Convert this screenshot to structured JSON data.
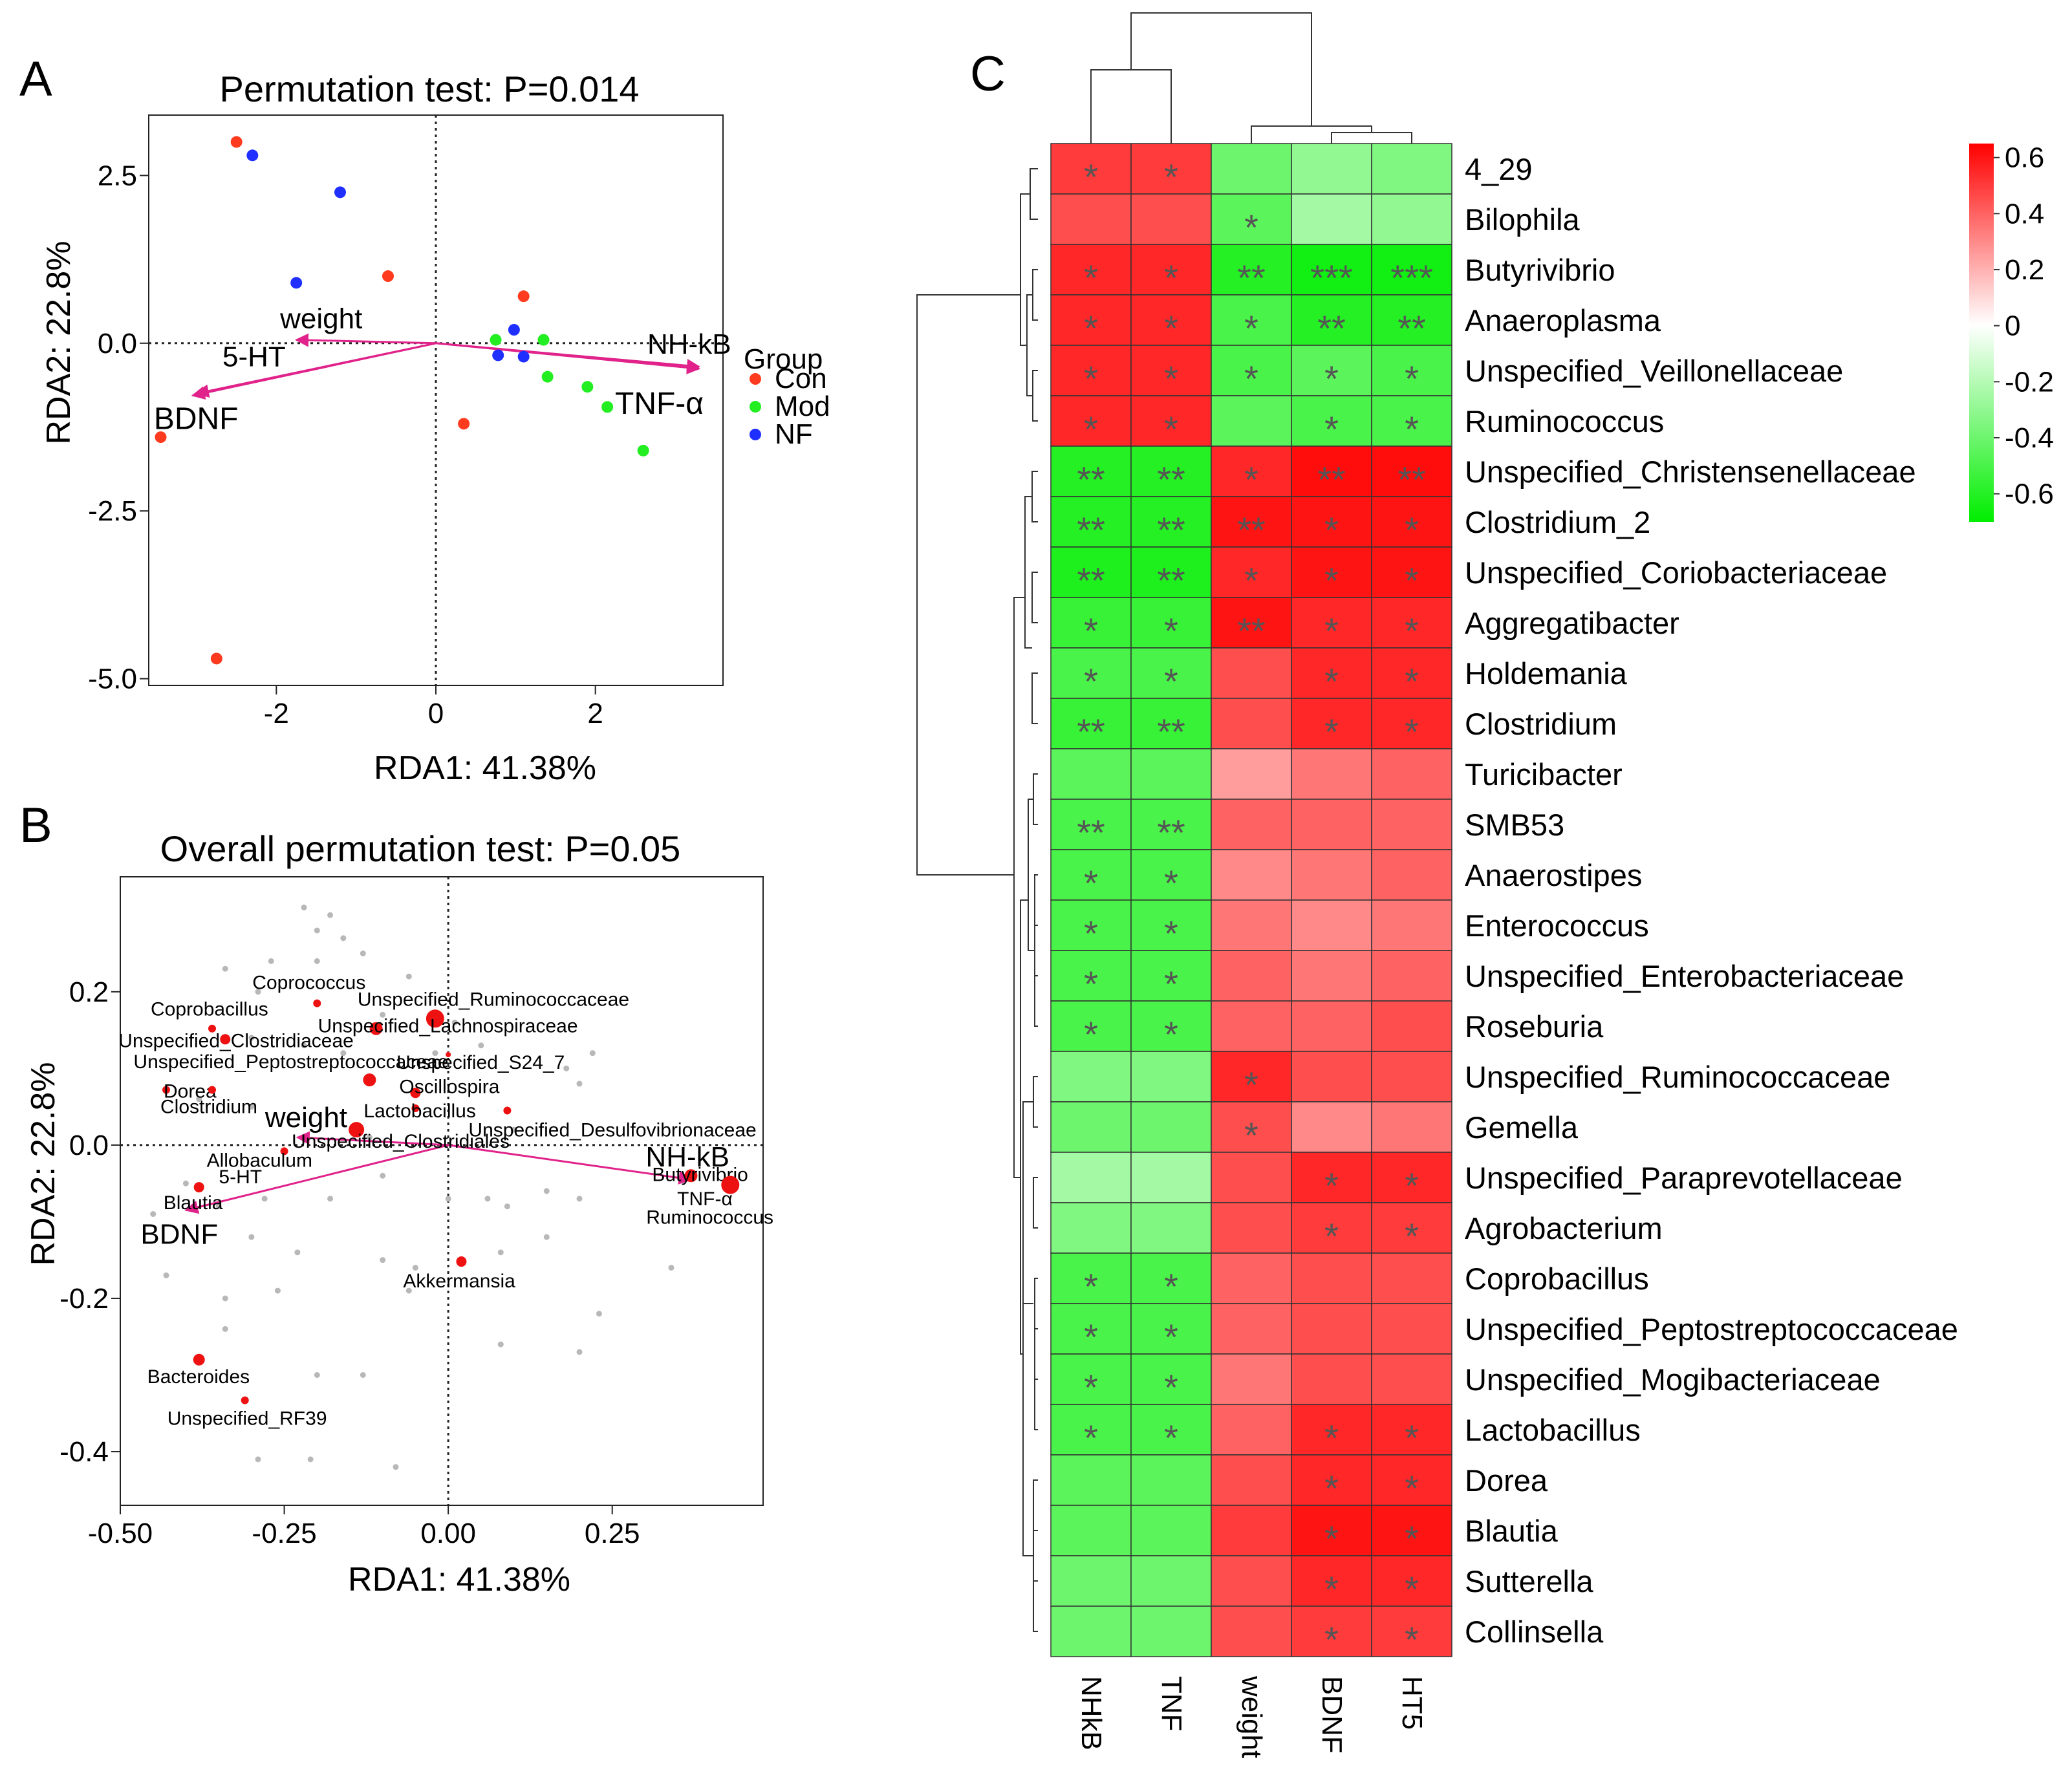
{
  "chart_data": [
    {
      "panel": "A",
      "type": "scatter",
      "title": "Permutation test: P=0.014",
      "xlabel": "RDA1: 41.38%",
      "ylabel": "RDA2: 22.8%",
      "xlim": [
        -3.6,
        3.6
      ],
      "ylim": [
        -5.1,
        3.4
      ],
      "xticks": [
        -2,
        0,
        2
      ],
      "xtick_labels": [
        "-2",
        "0",
        "2"
      ],
      "yticks": [
        -5.0,
        -2.5,
        0.0,
        2.5
      ],
      "ytick_labels": [
        "-5.0",
        "-2.5",
        "0.0",
        "2.5"
      ],
      "legend": {
        "title": "Group",
        "placement": "right"
      },
      "series": [
        {
          "name": "Con",
          "color": "#ff3b1f",
          "points": [
            [
              -2.5,
              3.0
            ],
            [
              -0.6,
              1.0
            ],
            [
              1.1,
              0.7
            ],
            [
              0.35,
              -1.2
            ],
            [
              -3.45,
              -1.4
            ],
            [
              -2.75,
              -4.7
            ]
          ]
        },
        {
          "name": "Mod",
          "color": "#22ee22",
          "points": [
            [
              0.75,
              0.05
            ],
            [
              1.35,
              0.05
            ],
            [
              1.4,
              -0.5
            ],
            [
              1.9,
              -0.65
            ],
            [
              2.15,
              -0.95
            ],
            [
              2.6,
              -1.6
            ]
          ]
        },
        {
          "name": "NF",
          "color": "#1f2fff",
          "points": [
            [
              -2.3,
              2.8
            ],
            [
              -1.2,
              2.25
            ],
            [
              -1.75,
              0.9
            ],
            [
              0.98,
              0.2
            ],
            [
              0.78,
              -0.18
            ],
            [
              1.1,
              -0.2
            ]
          ]
        }
      ],
      "arrows": [
        {
          "label": "weight",
          "end": [
            -1.75,
            0.05
          ]
        },
        {
          "label": "5-HT",
          "end": [
            -3.0,
            -0.75
          ]
        },
        {
          "label": "BDNF",
          "end": [
            -3.05,
            -0.78
          ]
        },
        {
          "label": "NH-kB",
          "end": [
            3.3,
            -0.35
          ]
        },
        {
          "label": "TNF-α",
          "end": [
            3.3,
            -0.38
          ]
        }
      ]
    },
    {
      "panel": "B",
      "type": "scatter",
      "title": "Overall permutation test: P=0.05",
      "xlabel": "RDA1: 41.38%",
      "ylabel": "RDA2: 22.8%",
      "xlim": [
        -0.5,
        0.48
      ],
      "ylim": [
        -0.47,
        0.35
      ],
      "xticks": [
        -0.5,
        -0.25,
        0.0,
        0.25
      ],
      "xtick_labels": [
        "-0.50",
        "-0.25",
        "0.00",
        "0.25"
      ],
      "yticks": [
        -0.4,
        -0.2,
        0.0,
        0.2
      ],
      "ytick_labels": [
        "-0.4",
        "-0.2",
        "0.0",
        "0.2"
      ],
      "taxa": [
        {
          "label": "Coprococcus",
          "x": -0.2,
          "y": 0.185,
          "size": 6
        },
        {
          "label": "Unspecified_Ruminococcaceae",
          "x": -0.02,
          "y": 0.165,
          "size": 14
        },
        {
          "label": "Coprobacillus",
          "x": -0.36,
          "y": 0.152,
          "size": 6
        },
        {
          "label": "Unspecified_Lachnospiraceae",
          "x": -0.11,
          "y": 0.152,
          "size": 10
        },
        {
          "label": "Unspecified_Clostridiaceae",
          "x": -0.34,
          "y": 0.138,
          "size": 8
        },
        {
          "label": "Unspecified_S24_7",
          "x": 0.0,
          "y": 0.118,
          "size": 4
        },
        {
          "label": "Unspecified_Peptostreptococcaceae",
          "x": -0.12,
          "y": 0.085,
          "size": 10
        },
        {
          "label": "Dorea",
          "x": -0.43,
          "y": 0.072,
          "size": 6
        },
        {
          "label": "Oscillospira",
          "x": -0.05,
          "y": 0.068,
          "size": 8
        },
        {
          "label": "Clostridium",
          "x": -0.36,
          "y": 0.072,
          "size": 6
        },
        {
          "label": "Lactobacillus",
          "x": -0.05,
          "y": 0.048,
          "size": 6
        },
        {
          "label": "Unspecified_Desulfovibrionaceae",
          "x": 0.09,
          "y": 0.045,
          "size": 6
        },
        {
          "label": "Unspecified_Clostridiales",
          "x": -0.14,
          "y": 0.02,
          "size": 12
        },
        {
          "label": "Allobaculum",
          "x": -0.25,
          "y": -0.008,
          "size": 6
        },
        {
          "label": "5-HT",
          "x": -0.33,
          "y": -0.05,
          "size": 4
        },
        {
          "label": "Blautia",
          "x": -0.38,
          "y": -0.055,
          "size": 8
        },
        {
          "label": "Butyrivibrio",
          "x": 0.37,
          "y": -0.04,
          "size": 10
        },
        {
          "label": "TNF-α",
          "x": 0.42,
          "y": -0.05,
          "size": 4
        },
        {
          "label": "Ruminococcus",
          "x": 0.43,
          "y": -0.052,
          "size": 14
        },
        {
          "label": "Akkermansia",
          "x": 0.02,
          "y": -0.152,
          "size": 8
        },
        {
          "label": "Bacteroides",
          "x": -0.38,
          "y": -0.28,
          "size": 9
        },
        {
          "label": "Unspecified_RF39",
          "x": -0.31,
          "y": -0.333,
          "size": 6
        }
      ],
      "background_points": [
        [
          -0.22,
          0.31
        ],
        [
          -0.18,
          0.3
        ],
        [
          -0.2,
          0.28
        ],
        [
          -0.16,
          0.27
        ],
        [
          -0.27,
          0.24
        ],
        [
          -0.2,
          0.24
        ],
        [
          -0.34,
          0.23
        ],
        [
          -0.13,
          0.25
        ],
        [
          -0.06,
          0.22
        ],
        [
          -0.29,
          0.2
        ],
        [
          -0.1,
          0.17
        ],
        [
          0.01,
          0.16
        ],
        [
          -0.3,
          0.14
        ],
        [
          -0.16,
          0.12
        ],
        [
          -0.22,
          0.13
        ],
        [
          -0.02,
          0.12
        ],
        [
          0.05,
          0.13
        ],
        [
          0.22,
          0.12
        ],
        [
          0.18,
          0.1
        ],
        [
          -0.38,
          0.06
        ],
        [
          -0.3,
          0.05
        ],
        [
          0.2,
          0.08
        ],
        [
          0.1,
          0.02
        ],
        [
          -0.12,
          0.01
        ],
        [
          -0.4,
          -0.05
        ],
        [
          -0.35,
          -0.08
        ],
        [
          -0.28,
          -0.07
        ],
        [
          -0.18,
          -0.07
        ],
        [
          -0.1,
          -0.04
        ],
        [
          0.0,
          -0.07
        ],
        [
          0.06,
          -0.07
        ],
        [
          0.09,
          -0.08
        ],
        [
          0.15,
          -0.06
        ],
        [
          0.2,
          -0.07
        ],
        [
          -0.45,
          -0.09
        ],
        [
          -0.3,
          -0.12
        ],
        [
          -0.23,
          -0.14
        ],
        [
          -0.1,
          -0.15
        ],
        [
          -0.05,
          -0.16
        ],
        [
          0.08,
          -0.14
        ],
        [
          0.15,
          -0.12
        ],
        [
          0.34,
          -0.16
        ],
        [
          -0.43,
          -0.17
        ],
        [
          -0.34,
          -0.2
        ],
        [
          -0.26,
          -0.19
        ],
        [
          -0.06,
          -0.19
        ],
        [
          0.23,
          -0.22
        ],
        [
          -0.34,
          -0.24
        ],
        [
          0.08,
          -0.26
        ],
        [
          0.2,
          -0.27
        ],
        [
          -0.2,
          -0.3
        ],
        [
          -0.13,
          -0.3
        ],
        [
          -0.29,
          -0.41
        ],
        [
          -0.21,
          -0.41
        ],
        [
          -0.08,
          -0.42
        ]
      ],
      "arrows": [
        {
          "label": "weight",
          "end": [
            -0.23,
            0.01
          ]
        },
        {
          "label": "BDNF",
          "end": [
            -0.4,
            -0.085
          ]
        },
        {
          "label": "NH-kB",
          "end": [
            0.37,
            -0.045
          ]
        }
      ]
    },
    {
      "panel": "C",
      "type": "heatmap",
      "columns": [
        "NHkB",
        "TNF",
        "weight",
        "BDNF",
        "HT5"
      ],
      "rows": [
        "4_29",
        "Bilophila",
        "Butyrivibrio",
        "Anaeroplasma",
        "Unspecified_Veillonellaceae",
        "Ruminococcus",
        "Unspecified_Christensenellaceae",
        "Clostridium_2",
        "Unspecified_Coriobacteriaceae",
        "Aggregatibacter",
        "Holdemania",
        "Clostridium",
        "Turicibacter",
        "SMB53",
        "Anaerostipes",
        "Enterococcus",
        "Unspecified_Enterobacteriaceae",
        "Roseburia",
        "Unspecified_Ruminococcaceae",
        "Gemella",
        "Unspecified_Paraprevotellaceae",
        "Agrobacterium",
        "Coprobacillus",
        "Unspecified_Peptostreptococcaceae",
        "Unspecified_Mogibacteriaceae",
        "Lactobacillus",
        "Dorea",
        "Blautia",
        "Sutterella",
        "Collinsella"
      ],
      "values": [
        [
          0.5,
          0.5,
          -0.4,
          -0.3,
          -0.35
        ],
        [
          0.45,
          0.45,
          -0.45,
          -0.25,
          -0.3
        ],
        [
          0.55,
          0.55,
          -0.6,
          -0.65,
          -0.65
        ],
        [
          0.55,
          0.55,
          -0.5,
          -0.6,
          -0.6
        ],
        [
          0.55,
          0.55,
          -0.5,
          -0.45,
          -0.5
        ],
        [
          0.55,
          0.55,
          -0.45,
          -0.5,
          -0.5
        ],
        [
          -0.6,
          -0.6,
          0.55,
          0.62,
          0.62
        ],
        [
          -0.6,
          -0.6,
          0.6,
          0.6,
          0.6
        ],
        [
          -0.62,
          -0.62,
          0.55,
          0.6,
          0.6
        ],
        [
          -0.55,
          -0.55,
          0.6,
          0.55,
          0.55
        ],
        [
          -0.5,
          -0.5,
          0.45,
          0.55,
          0.55
        ],
        [
          -0.55,
          -0.55,
          0.45,
          0.55,
          0.55
        ],
        [
          -0.45,
          -0.45,
          0.25,
          0.35,
          0.4
        ],
        [
          -0.5,
          -0.5,
          0.4,
          0.4,
          0.4
        ],
        [
          -0.5,
          -0.5,
          0.3,
          0.35,
          0.4
        ],
        [
          -0.5,
          -0.5,
          0.35,
          0.3,
          0.35
        ],
        [
          -0.5,
          -0.5,
          0.4,
          0.35,
          0.4
        ],
        [
          -0.5,
          -0.5,
          0.4,
          0.4,
          0.45
        ],
        [
          -0.35,
          -0.35,
          0.55,
          0.45,
          0.45
        ],
        [
          -0.4,
          -0.4,
          0.45,
          0.3,
          0.35
        ],
        [
          -0.25,
          -0.25,
          0.45,
          0.55,
          0.55
        ],
        [
          -0.35,
          -0.35,
          0.45,
          0.5,
          0.5
        ],
        [
          -0.5,
          -0.5,
          0.4,
          0.45,
          0.45
        ],
        [
          -0.5,
          -0.5,
          0.4,
          0.45,
          0.45
        ],
        [
          -0.5,
          -0.5,
          0.35,
          0.45,
          0.45
        ],
        [
          -0.5,
          -0.5,
          0.4,
          0.55,
          0.55
        ],
        [
          -0.45,
          -0.45,
          0.45,
          0.55,
          0.55
        ],
        [
          -0.45,
          -0.45,
          0.5,
          0.6,
          0.6
        ],
        [
          -0.4,
          -0.4,
          0.45,
          0.55,
          0.55
        ],
        [
          -0.4,
          -0.4,
          0.45,
          0.5,
          0.5
        ]
      ],
      "significance": [
        [
          "*",
          "*",
          "",
          "",
          ""
        ],
        [
          "",
          "",
          "*",
          "",
          ""
        ],
        [
          "*",
          "*",
          "**",
          "***",
          "***"
        ],
        [
          "*",
          "*",
          "*",
          "**",
          "**"
        ],
        [
          "*",
          "*",
          "*",
          "*",
          "*"
        ],
        [
          "*",
          "*",
          "",
          "*",
          "*"
        ],
        [
          "**",
          "**",
          "*",
          "**",
          "**"
        ],
        [
          "**",
          "**",
          "**",
          "*",
          "*"
        ],
        [
          "**",
          "**",
          "*",
          "*",
          "*"
        ],
        [
          "*",
          "*",
          "**",
          "*",
          "*"
        ],
        [
          "*",
          "*",
          "",
          "*",
          "*"
        ],
        [
          "**",
          "**",
          "",
          "*",
          "*"
        ],
        [
          "",
          "",
          "",
          "",
          ""
        ],
        [
          "**",
          "**",
          "",
          "",
          ""
        ],
        [
          "*",
          "*",
          "",
          "",
          ""
        ],
        [
          "*",
          "*",
          "",
          "",
          ""
        ],
        [
          "*",
          "*",
          "",
          "",
          ""
        ],
        [
          "*",
          "*",
          "",
          "",
          ""
        ],
        [
          "",
          "",
          "*",
          "",
          ""
        ],
        [
          "",
          "",
          "*",
          "",
          ""
        ],
        [
          "",
          "",
          "",
          "*",
          "*"
        ],
        [
          "",
          "",
          "",
          "*",
          "*"
        ],
        [
          "*",
          "*",
          "",
          "",
          ""
        ],
        [
          "*",
          "*",
          "",
          "",
          ""
        ],
        [
          "*",
          "*",
          "",
          "",
          ""
        ],
        [
          "*",
          "*",
          "",
          "*",
          "*"
        ],
        [
          "",
          "",
          "",
          "*",
          "*"
        ],
        [
          "",
          "",
          "",
          "*",
          "*"
        ],
        [
          "",
          "",
          "",
          "*",
          "*"
        ],
        [
          "",
          "",
          "",
          "*",
          "*"
        ]
      ],
      "colorbar": {
        "range": [
          -0.7,
          0.65
        ],
        "ticks": [
          0.6,
          0.4,
          0.2,
          0,
          -0.2,
          -0.4,
          -0.6
        ],
        "tick_labels": [
          "0.6",
          "0.4",
          "0.2",
          "0",
          "-0.2",
          "-0.4",
          "-0.6"
        ],
        "low_color": "#00ee00",
        "mid_color": "#ffffff",
        "high_color": "#ff0000"
      }
    }
  ],
  "panel_letters": {
    "a": "A",
    "b": "B",
    "c": "C"
  }
}
